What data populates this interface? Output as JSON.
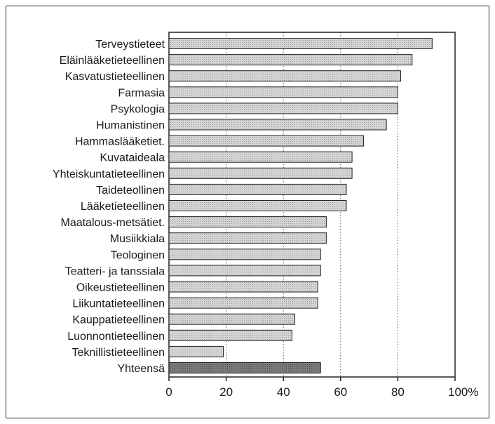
{
  "chart_data": {
    "type": "bar",
    "orientation": "horizontal",
    "title": "",
    "xlabel": "",
    "ylabel": "",
    "xlim": [
      0,
      100
    ],
    "x_ticks": [
      "0",
      "20",
      "40",
      "60",
      "80",
      "100%"
    ],
    "grid": "vertical dotted lines at 20, 40, 60, 80",
    "categories": [
      "Terveystieteet",
      "Eläinlääketieteellinen",
      "Kasvatustieteellinen",
      "Farmasia",
      "Psykologia",
      "Humanistinen",
      "Hammaslääketiet.",
      "Kuvataideala",
      "Yhteiskuntatieteellinen",
      "Taideteollinen",
      "Lääketieteellinen",
      "Maatalous-metsätiet.",
      "Musiikkiala",
      "Teologinen",
      "Teatteri- ja tanssiala",
      "Oikeustieteellinen",
      "Liikuntatieteellinen",
      "Kauppatieteellinen",
      "Luonnontieteellinen",
      "Teknillistieteellinen",
      "Yhteensä"
    ],
    "values": [
      92,
      85,
      81,
      80,
      80,
      76,
      68,
      64,
      64,
      62,
      62,
      55,
      55,
      53,
      53,
      52,
      52,
      44,
      43,
      19,
      53
    ],
    "colors": {
      "bar": "#c8c8c8",
      "total_bar": "#6e6e6e",
      "outline": "#222222"
    }
  }
}
